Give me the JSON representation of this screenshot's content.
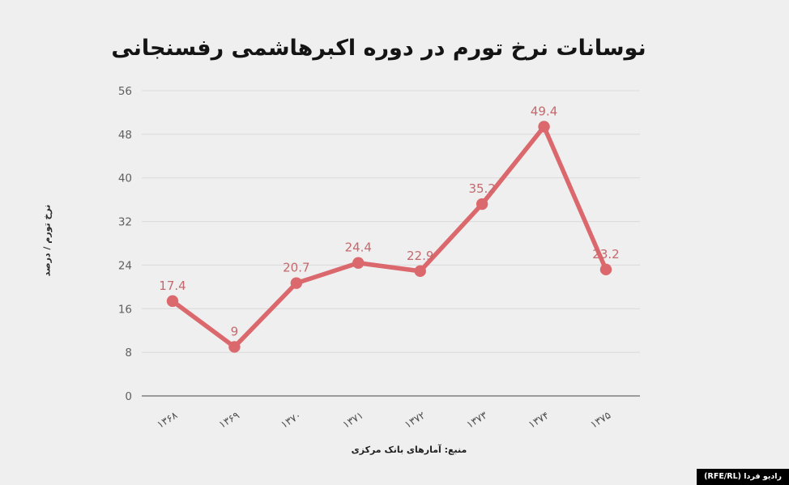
{
  "page": {
    "background_color": "#efefef"
  },
  "chart": {
    "title": "نوسانات نرخ تورم در دوره اکبرهاشمی رفسنجانی",
    "y_axis_title": "نرخ تورم / درصد",
    "source": "منبع: آمارهای بانک مرکزی",
    "branding": "(RFE/RL) رادیو فردا"
  },
  "chart_data": {
    "type": "line",
    "title": "نوسانات نرخ تورم در دوره اکبرهاشمی رفسنجانی",
    "categories": [
      "۱۳۶۸",
      "۱۳۶۹",
      "۱۳۷۰",
      "۱۳۷۱",
      "۱۳۷۲",
      "۱۳۷۳",
      "۱۳۷۴",
      "۱۳۷۵"
    ],
    "values": [
      17.4,
      9,
      20.7,
      24.4,
      22.9,
      35.2,
      49.4,
      23.2
    ],
    "point_labels": [
      "17.4",
      "9",
      "20.7",
      "24.4",
      "22.9",
      "35.2",
      "49.4",
      "23.2"
    ],
    "xlabel": "",
    "ylabel": "نرخ تورم / درصد",
    "ylim": [
      0,
      56
    ],
    "yticks": [
      0,
      8,
      16,
      24,
      32,
      40,
      48,
      56
    ],
    "grid": true,
    "legend": "none",
    "colors": {
      "line": "#db686d",
      "marker": "#db686d",
      "point_label": "#c4696d",
      "axis_text": "#5f5f5f",
      "x_axis_text": "#4f4f4f",
      "grid_line": "#dcdcdc",
      "baseline": "#8f8f8f"
    }
  }
}
